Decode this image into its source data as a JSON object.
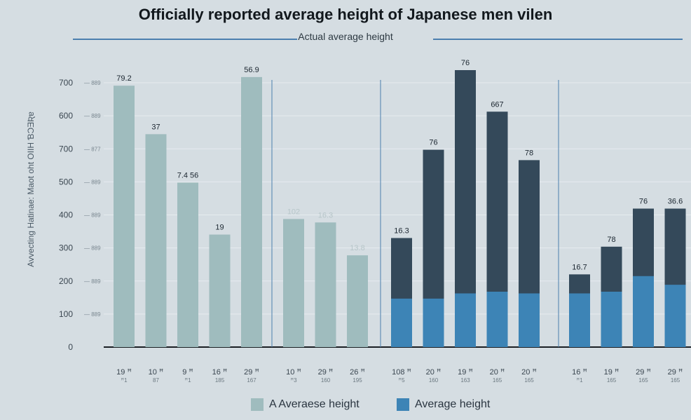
{
  "header": {
    "title": "Officially reported average height of Japanese men vilen",
    "subtitle": "Actual average height"
  },
  "colors": {
    "background": "#d5dde2",
    "light_bar": "#9fbcbe",
    "dark_bar": "#34495a",
    "blue_bar": "#3d84b6",
    "axis": "#1a1f24",
    "grid": "#e6ecef",
    "divider": "#4b7fae"
  },
  "chart_data": {
    "type": "bar",
    "title": "Officially reported average height of Japanese men vilen",
    "subtitle": "Actual average height",
    "ylabel": "Avvecting Hatinae: Maot oht OIIH ƁƆƎƦɐ",
    "yticks": [
      {
        "label": "700",
        "sub": "889"
      },
      {
        "label": "600",
        "sub": "889"
      },
      {
        "label": "700",
        "sub": "877"
      },
      {
        "label": "500",
        "sub": "889"
      },
      {
        "label": "400",
        "sub": "889"
      },
      {
        "label": "300",
        "sub": "889"
      },
      {
        "label": "200",
        "sub": "889"
      },
      {
        "label": "100",
        "sub": "889"
      },
      {
        "label": "0",
        "sub": ""
      }
    ],
    "yunits_max": 800,
    "legend": [
      {
        "name": "A Averaese height",
        "color": "#9fbcbe"
      },
      {
        "name": "Average height",
        "color": "#3d84b6"
      }
    ],
    "groups": [
      {
        "bars": [
          {
            "cat": "19 ꟸ",
            "sub": "ꟸ1",
            "value": 755,
            "label": "79.2"
          },
          {
            "cat": "10 ꟸ",
            "sub": "87",
            "value": 615,
            "label": "37"
          },
          {
            "cat": "9 ꟸ",
            "sub": "ꟸ1",
            "value": 475,
            "label": "7.4 56"
          },
          {
            "cat": "16 ꟸ",
            "sub": "185",
            "value": 325,
            "label": "19"
          },
          {
            "cat": "29 ꟸ",
            "sub": "167",
            "value": 780,
            "label": "56.9"
          }
        ]
      },
      {
        "bars": [
          {
            "cat": "10 ꟸ",
            "sub": "ꟸ3",
            "value": 370,
            "label": "102"
          },
          {
            "cat": "29 ꟸ",
            "sub": "160",
            "value": 360,
            "label": "16.3"
          },
          {
            "cat": "26 ꟸ",
            "sub": "195",
            "value": 265,
            "label": "13.8"
          }
        ]
      },
      {
        "bars": [
          {
            "cat": "108 ꟸ",
            "sub": "ꟸ5",
            "value": 315,
            "blue": 140,
            "label": "16.3"
          },
          {
            "cat": "20 ꟸ",
            "sub": "160",
            "value": 570,
            "blue": 140,
            "label": "76"
          },
          {
            "cat": "19 ꟸ",
            "sub": "163",
            "value": 800,
            "blue": 155,
            "label": "76"
          },
          {
            "cat": "20 ꟸ",
            "sub": "165",
            "value": 680,
            "blue": 160,
            "label": "667"
          },
          {
            "cat": "20 ꟸ",
            "sub": "165",
            "value": 540,
            "blue": 155,
            "label": "78"
          }
        ]
      },
      {
        "bars": [
          {
            "cat": "16 ꟸ",
            "sub": "ꟸ1",
            "value": 210,
            "blue": 155,
            "label": "16.7"
          },
          {
            "cat": "19 ꟸ",
            "sub": "165",
            "value": 290,
            "blue": 160,
            "label": "78"
          },
          {
            "cat": "29 ꟸ",
            "sub": "165",
            "value": 400,
            "blue": 205,
            "label": "76"
          },
          {
            "cat": "29 ꟸ",
            "sub": "165",
            "value": 400,
            "blue": 180,
            "label": "36.6"
          }
        ]
      }
    ]
  }
}
